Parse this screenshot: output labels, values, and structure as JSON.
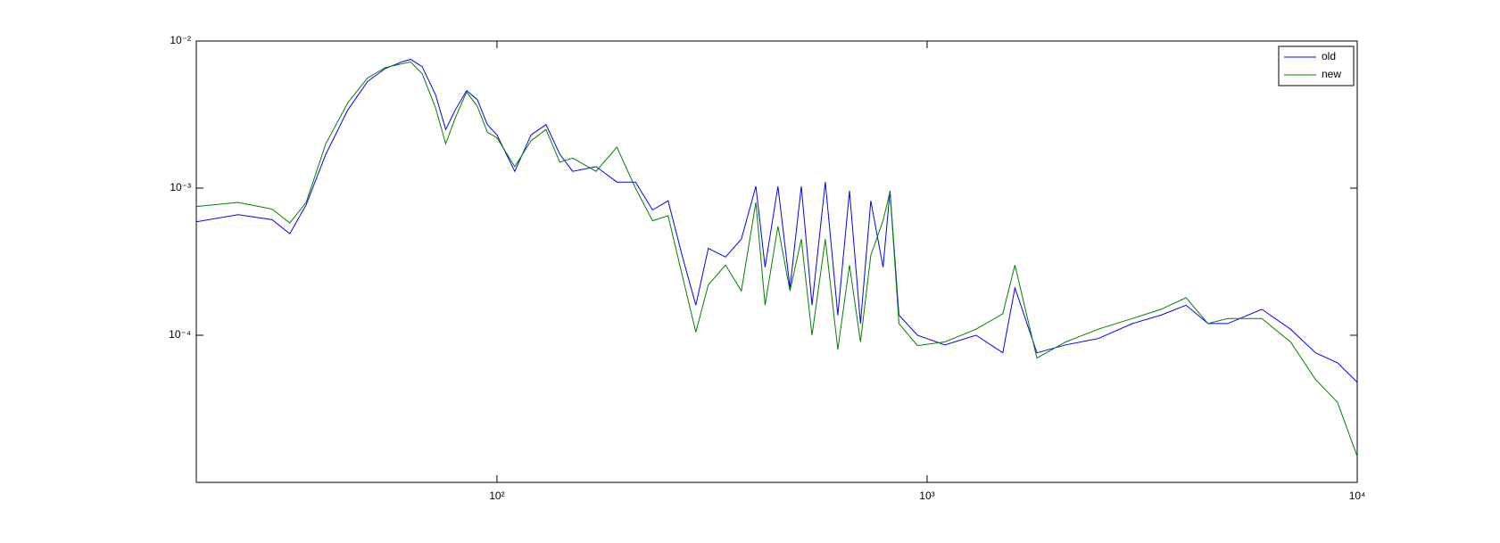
{
  "chart_data": {
    "type": "line",
    "xscale": "log",
    "yscale": "log",
    "legend": "northeast",
    "grid": false,
    "xlim": [
      20,
      10000
    ],
    "ylim": [
      1e-05,
      0.01
    ],
    "xticks": [
      {
        "value": 100,
        "label": "10²"
      },
      {
        "value": 1000,
        "label": "10³"
      },
      {
        "value": 10000,
        "label": "10⁴"
      }
    ],
    "yticks": [
      {
        "value": 0.01,
        "label": "10⁻²"
      },
      {
        "value": 0.001,
        "label": "10⁻³"
      },
      {
        "value": 0.0001,
        "label": "10⁻⁴"
      }
    ],
    "x": [
      20,
      25,
      30,
      33,
      36,
      40,
      45,
      50,
      55,
      60,
      63,
      67,
      72,
      76,
      80,
      85,
      90,
      95,
      100,
      110,
      120,
      130,
      140,
      150,
      170,
      190,
      210,
      230,
      250,
      270,
      290,
      310,
      340,
      370,
      400,
      420,
      450,
      480,
      510,
      540,
      580,
      620,
      660,
      700,
      740,
      790,
      820,
      860,
      950,
      1100,
      1300,
      1500,
      1600,
      1800,
      2100,
      2500,
      3000,
      3500,
      4000,
      4500,
      5000,
      6000,
      7000,
      8000,
      9000,
      10000
    ],
    "series": [
      {
        "name": "old",
        "color": "#0000ff",
        "values": [
          0.00059,
          0.00066,
          0.00061,
          0.00049,
          0.00077,
          0.0017,
          0.0034,
          0.0053,
          0.0065,
          0.0072,
          0.0075,
          0.0067,
          0.0043,
          0.0025,
          0.0034,
          0.0046,
          0.004,
          0.0027,
          0.0023,
          0.0013,
          0.0023,
          0.0027,
          0.0017,
          0.0013,
          0.0014,
          0.0011,
          0.0011,
          0.00071,
          0.00082,
          0.00034,
          0.00016,
          0.00039,
          0.00034,
          0.00045,
          0.00103,
          0.00029,
          0.00103,
          0.00021,
          0.00103,
          0.00016,
          0.0011,
          0.000137,
          0.00096,
          0.00012,
          0.00082,
          0.00029,
          0.00096,
          0.000137,
          0.0001,
          8.6e-05,
          0.0001,
          7.6e-05,
          0.00021,
          7.6e-05,
          8.6e-05,
          9.5e-05,
          0.00012,
          0.000137,
          0.00016,
          0.00012,
          0.00012,
          0.00015,
          0.00011,
          7.6e-05,
          6.5e-05,
          4.8e-05
        ]
      },
      {
        "name": "new",
        "color": "#008000",
        "values": [
          0.00075,
          0.0008,
          0.00072,
          0.00058,
          0.0008,
          0.002,
          0.0038,
          0.0056,
          0.0066,
          0.007,
          0.0072,
          0.006,
          0.0035,
          0.002,
          0.003,
          0.0045,
          0.0036,
          0.0024,
          0.0022,
          0.0014,
          0.0021,
          0.0025,
          0.0015,
          0.0016,
          0.0013,
          0.0019,
          0.001,
          0.0006,
          0.00065,
          0.00025,
          0.000105,
          0.00022,
          0.0003,
          0.0002,
          0.0008,
          0.00016,
          0.00055,
          0.0002,
          0.00045,
          0.0001,
          0.00045,
          8e-05,
          0.0003,
          9e-05,
          0.00035,
          0.0006,
          0.00095,
          0.00012,
          8.5e-05,
          9e-05,
          0.00011,
          0.00014,
          0.0003,
          7e-05,
          9e-05,
          0.00011,
          0.00013,
          0.00015,
          0.00018,
          0.00012,
          0.00013,
          0.00013,
          9e-05,
          5e-05,
          3.5e-05,
          1.5e-05
        ]
      }
    ]
  }
}
